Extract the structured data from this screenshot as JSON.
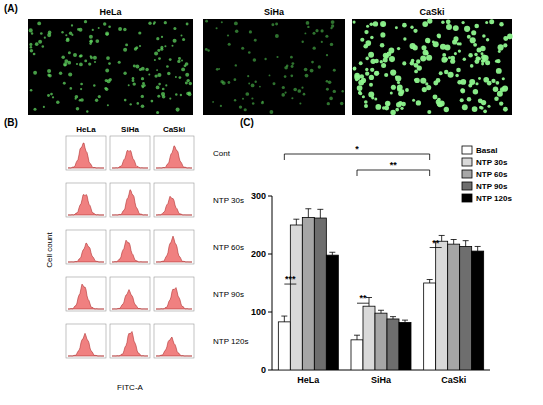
{
  "panel_a": {
    "label": "(A)",
    "images": [
      "HeLa",
      "SiHa",
      "CaSki"
    ]
  },
  "panel_b": {
    "label": "(B)",
    "columns": [
      "HeLa",
      "SiHa",
      "CaSki"
    ],
    "rows": [
      "Cont",
      "NTP 30s",
      "NTP 60s",
      "NTP 90s",
      "NTP 120s"
    ],
    "x_label": "FITC-A",
    "y_label": "Cell count"
  },
  "chart_data": {
    "type": "bar",
    "title": "(C)",
    "categories": [
      "HeLa",
      "SiHa",
      "CaSki"
    ],
    "series": [
      {
        "name": "Basal",
        "color": "#ffffff",
        "values": [
          83,
          52,
          150
        ],
        "errors": [
          10,
          8,
          6
        ]
      },
      {
        "name": "NTP 30s",
        "color": "#d9d9d9",
        "values": [
          250,
          110,
          222
        ],
        "errors": [
          10,
          15,
          10
        ]
      },
      {
        "name": "NTP 60s",
        "color": "#a6a6a6",
        "values": [
          263,
          98,
          217
        ],
        "errors": [
          15,
          5,
          8
        ]
      },
      {
        "name": "NTP 90s",
        "color": "#6e6e6e",
        "values": [
          262,
          88,
          213
        ],
        "errors": [
          15,
          4,
          10
        ]
      },
      {
        "name": "NTP 120s",
        "color": "#000000",
        "values": [
          198,
          82,
          205
        ],
        "errors": [
          5,
          4,
          8
        ]
      }
    ],
    "ylim": [
      0,
      300
    ],
    "yticks": [
      0,
      100,
      200,
      300
    ],
    "grid": false,
    "legend": "top-right",
    "annotations": [
      {
        "text": "***",
        "between": [
          [
            "HeLa",
            "Basal"
          ],
          [
            "HeLa",
            "NTP 30s"
          ]
        ]
      },
      {
        "text": "**",
        "between": [
          [
            "SiHa",
            "Basal"
          ],
          [
            "SiHa",
            "NTP 30s"
          ]
        ]
      },
      {
        "text": "**",
        "between": [
          [
            "CaSki",
            "Basal"
          ],
          [
            "CaSki",
            "NTP 30s"
          ]
        ]
      },
      {
        "text": "*",
        "between": [
          [
            "HeLa",
            "Basal"
          ],
          [
            "CaSki",
            "Basal"
          ]
        ]
      },
      {
        "text": "**",
        "between": [
          [
            "SiHa",
            "Basal"
          ],
          [
            "CaSki",
            "Basal"
          ]
        ]
      }
    ]
  }
}
